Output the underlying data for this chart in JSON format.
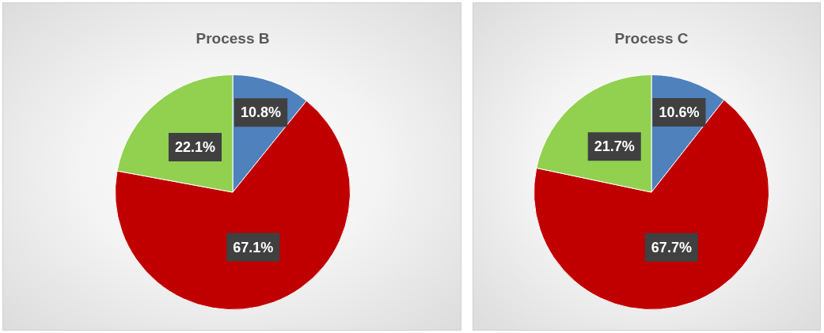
{
  "chart_data": [
    {
      "type": "pie",
      "title": "Process B",
      "categories": [
        null,
        null,
        null
      ],
      "values": [
        10.8,
        67.1,
        22.1
      ],
      "colors": [
        "#4f81bd",
        "#c00000",
        "#92d050"
      ],
      "value_labels": [
        "10.8%",
        "67.1%",
        "22.1%"
      ]
    },
    {
      "type": "pie",
      "title": "Process C",
      "categories": [
        null,
        null,
        null
      ],
      "values": [
        10.6,
        67.7,
        21.7
      ],
      "colors": [
        "#4f81bd",
        "#c00000",
        "#92d050"
      ],
      "value_labels": [
        "10.6%",
        "67.7%",
        "21.7%"
      ]
    }
  ]
}
